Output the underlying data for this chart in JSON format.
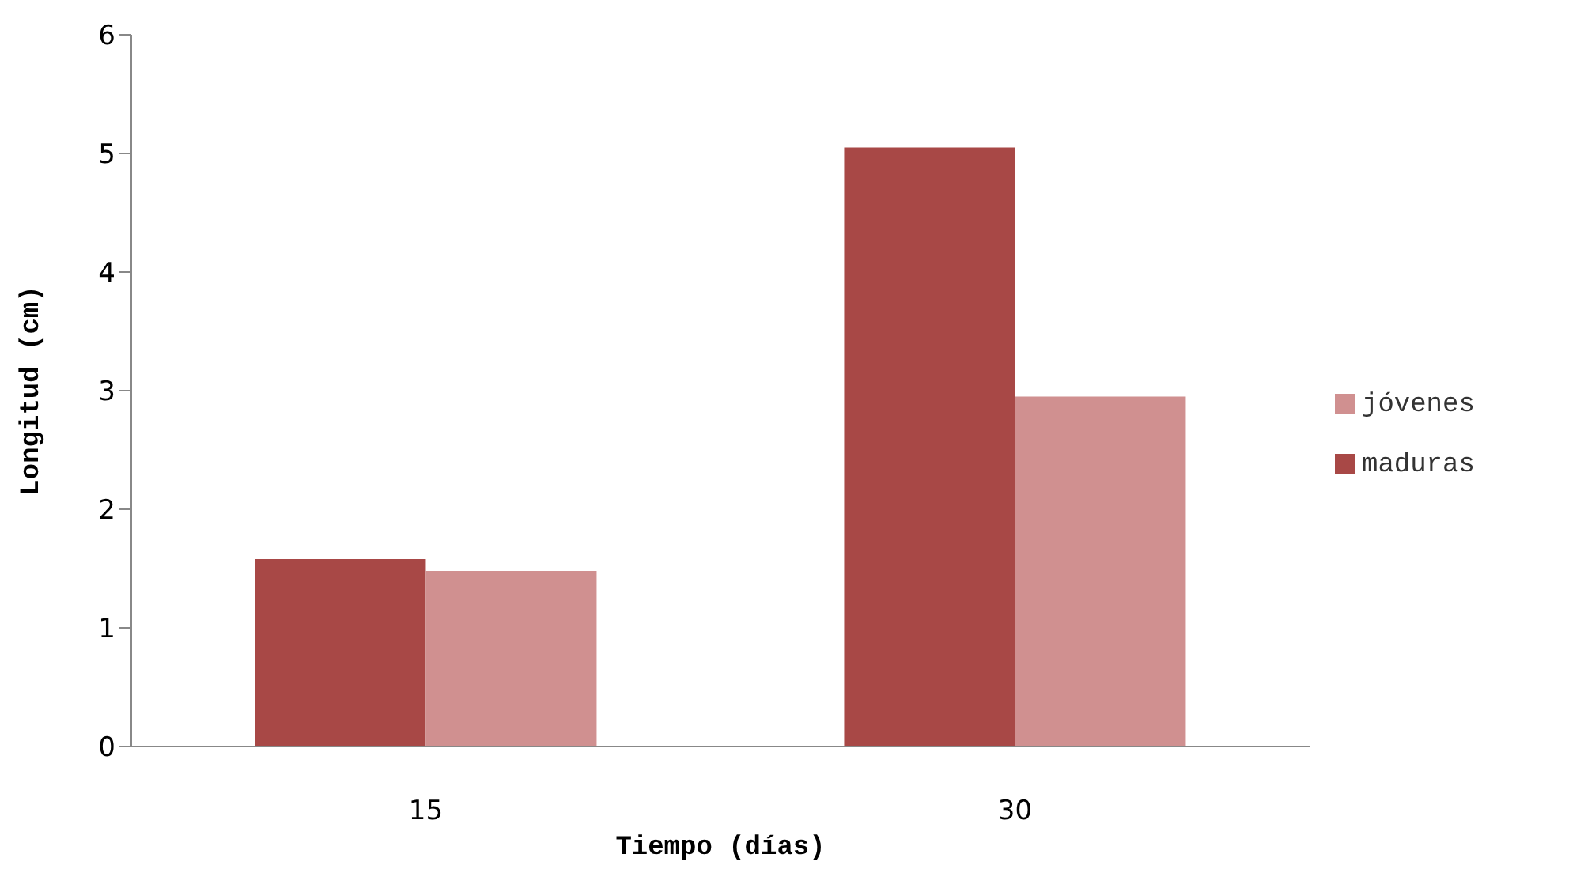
{
  "chart_data": {
    "type": "bar",
    "xlabel": "Tiempo (días)",
    "ylabel": "Longitud (cm)",
    "categories": [
      "15",
      "30"
    ],
    "series": [
      {
        "name": "maduras",
        "color": "#a84846",
        "values": [
          1.58,
          5.05
        ]
      },
      {
        "name": "jóvenes",
        "color": "#d09090",
        "values": [
          1.48,
          2.95
        ]
      }
    ],
    "ylim": [
      0,
      6
    ],
    "yticks": [
      0,
      1,
      2,
      3,
      4,
      5,
      6
    ],
    "grid": false,
    "legend": "right"
  }
}
